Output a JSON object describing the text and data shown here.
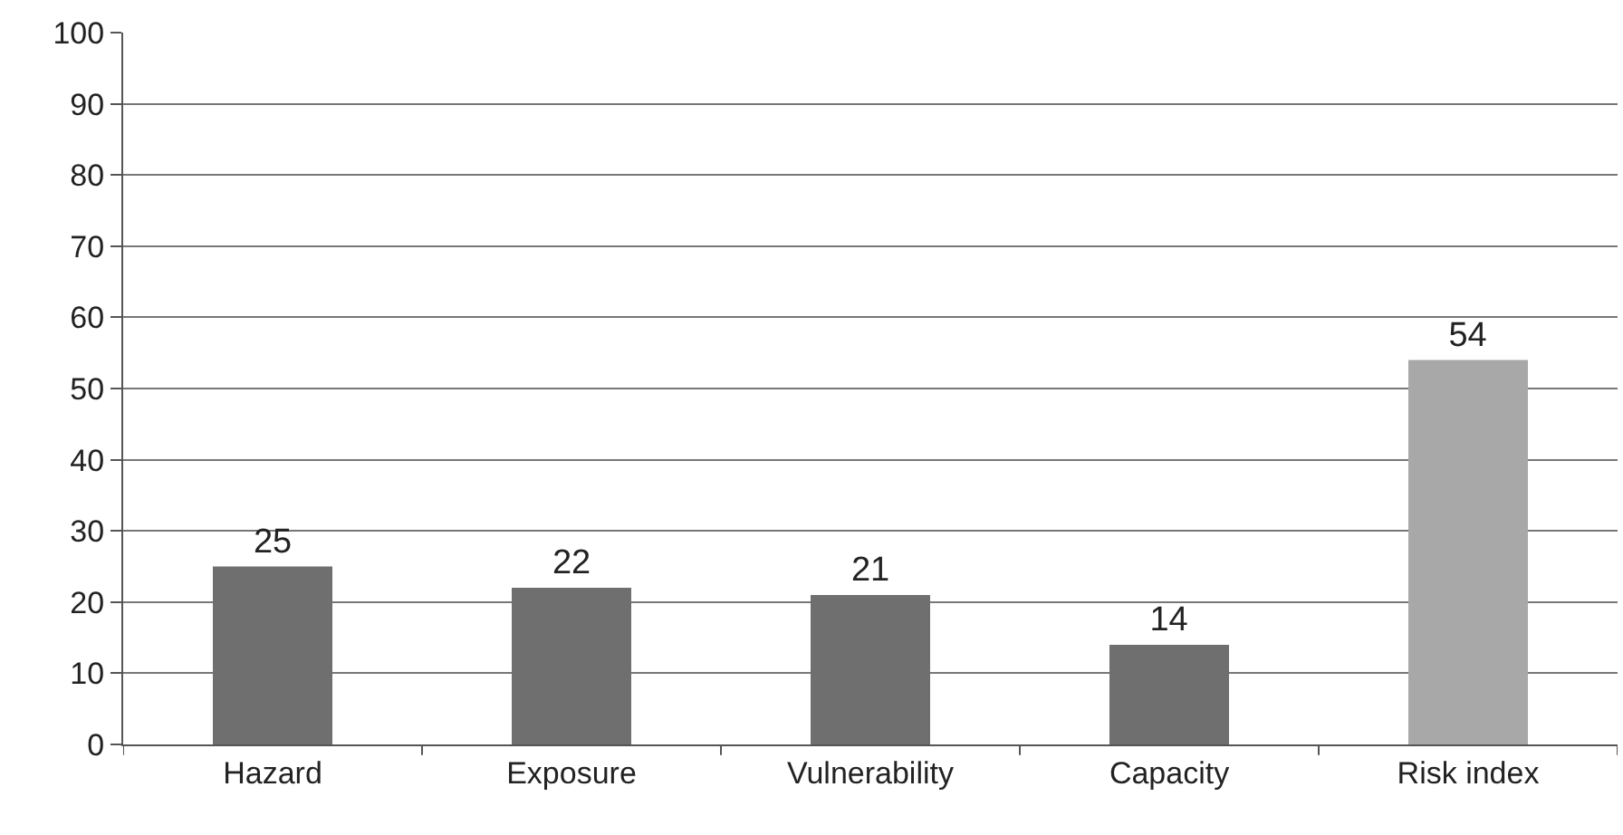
{
  "chart_data": {
    "type": "bar",
    "categories": [
      "Hazard",
      "Exposure",
      "Vulnerability",
      "Capacity",
      "Risk index"
    ],
    "values": [
      25,
      22,
      21,
      14,
      54
    ],
    "colors": [
      "#6f6f6f",
      "#6f6f6f",
      "#6f6f6f",
      "#6f6f6f",
      "#a8a8a8"
    ],
    "ylim": [
      0,
      100
    ],
    "yticks": [
      0,
      10,
      20,
      30,
      40,
      50,
      60,
      70,
      80,
      90,
      100
    ],
    "grid": "y",
    "data_labels": true
  }
}
